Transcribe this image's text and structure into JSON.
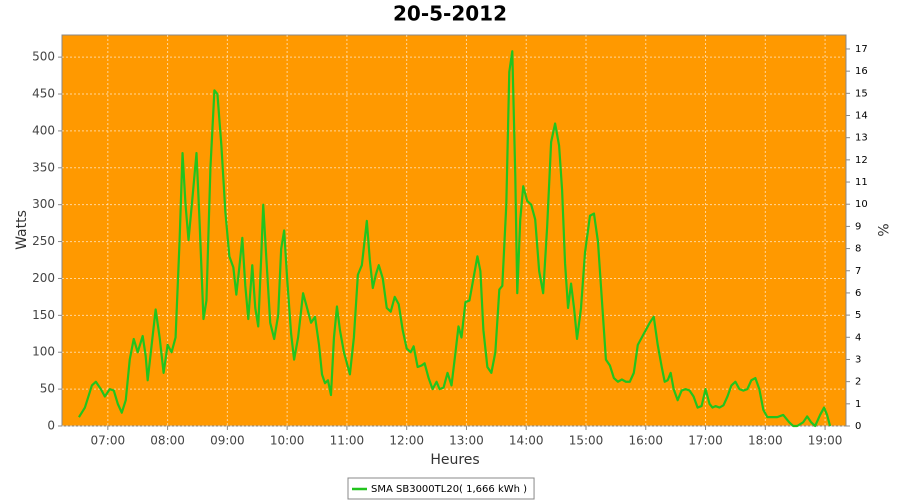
{
  "chart_data": {
    "type": "line",
    "title": "20-5-2012",
    "x_label": "Heures",
    "y_label": "Watts",
    "y2_label": "%",
    "x": [
      391,
      397,
      404,
      408,
      413,
      417,
      422,
      426,
      430,
      434,
      438,
      442,
      446,
      450,
      455,
      458,
      460,
      464,
      468,
      472,
      476,
      480,
      484,
      488,
      492,
      495,
      498,
      501,
      505,
      509,
      512,
      516,
      519,
      523,
      527,
      530,
      534,
      538,
      542,
      546,
      549,
      552,
      555,
      558,
      561,
      565,
      568,
      571,
      574,
      576,
      579,
      583,
      587,
      591,
      594,
      597,
      600,
      604,
      607,
      611,
      616,
      620,
      624,
      628,
      632,
      635,
      638,
      641,
      644,
      647,
      650,
      653,
      657,
      663,
      667,
      671,
      675,
      680,
      683,
      686,
      689,
      692,
      696,
      700,
      704,
      708,
      712,
      716,
      720,
      724,
      727,
      731,
      735,
      738,
      742,
      746,
      750,
      753,
      757,
      761,
      765,
      769,
      772,
      775,
      779,
      783,
      787,
      791,
      794,
      797,
      801,
      805,
      809,
      813,
      816,
      820,
      823,
      826,
      829,
      831,
      834,
      837,
      841,
      845,
      849,
      853,
      857,
      861,
      865,
      869,
      873,
      876,
      879,
      882,
      885,
      888,
      891,
      895,
      899,
      904,
      908,
      912,
      916,
      920,
      924,
      928,
      932,
      936,
      940,
      944,
      948,
      952,
      956,
      960,
      964,
      968,
      972,
      976,
      979,
      982,
      985,
      988,
      992,
      996,
      1000,
      1004,
      1008,
      1012,
      1016,
      1020,
      1024,
      1027,
      1030,
      1034,
      1038,
      1042,
      1046,
      1050,
      1054,
      1058,
      1062,
      1066,
      1070,
      1074,
      1078,
      1082,
      1086,
      1092,
      1098,
      1104,
      1108,
      1112,
      1118,
      1122,
      1126,
      1130,
      1135,
      1139,
      1142,
      1145
    ],
    "series": [
      {
        "name": "SMA SB3000TL20( 1,666 kWh )",
        "color": "#22c41e",
        "values": [
          12,
          25,
          55,
          60,
          50,
          40,
          50,
          48,
          30,
          18,
          35,
          90,
          118,
          100,
          122,
          95,
          62,
          110,
          158,
          120,
          72,
          110,
          100,
          120,
          250,
          370,
          300,
          252,
          310,
          370,
          280,
          145,
          170,
          350,
          455,
          450,
          380,
          290,
          230,
          215,
          178,
          215,
          255,
          190,
          145,
          218,
          160,
          135,
          230,
          300,
          230,
          140,
          118,
          150,
          240,
          265,
          200,
          125,
          90,
          120,
          180,
          160,
          140,
          148,
          110,
          70,
          58,
          62,
          42,
          120,
          162,
          130,
          100,
          70,
          120,
          205,
          218,
          278,
          225,
          187,
          205,
          218,
          200,
          160,
          155,
          175,
          165,
          130,
          105,
          100,
          108,
          80,
          82,
          85,
          65,
          50,
          60,
          50,
          52,
          72,
          55,
          100,
          135,
          120,
          168,
          170,
          200,
          230,
          210,
          130,
          80,
          72,
          100,
          185,
          190,
          300,
          480,
          508,
          340,
          180,
          280,
          325,
          305,
          300,
          280,
          210,
          180,
          270,
          385,
          410,
          380,
          320,
          220,
          160,
          193,
          160,
          118,
          160,
          235,
          285,
          288,
          250,
          170,
          90,
          82,
          65,
          60,
          63,
          60,
          60,
          72,
          110,
          120,
          130,
          140,
          148,
          110,
          80,
          60,
          62,
          72,
          50,
          35,
          48,
          50,
          48,
          40,
          25,
          27,
          50,
          30,
          25,
          27,
          25,
          28,
          40,
          55,
          60,
          50,
          48,
          50,
          62,
          65,
          50,
          22,
          12,
          12,
          12,
          15,
          5,
          0,
          0,
          5,
          13,
          5,
          0,
          15,
          25,
          15,
          0
        ]
      }
    ],
    "xlim": [
      374,
      1161
    ],
    "xticks": [
      {
        "value": 420,
        "label": "07:00"
      },
      {
        "value": 480,
        "label": "08:00"
      },
      {
        "value": 540,
        "label": "09:00"
      },
      {
        "value": 600,
        "label": "10:00"
      },
      {
        "value": 660,
        "label": "11:00"
      },
      {
        "value": 720,
        "label": "12:00"
      },
      {
        "value": 780,
        "label": "13:00"
      },
      {
        "value": 840,
        "label": "14:00"
      },
      {
        "value": 900,
        "label": "15:00"
      },
      {
        "value": 960,
        "label": "16:00"
      },
      {
        "value": 1020,
        "label": "17:00"
      },
      {
        "value": 1080,
        "label": "18:00"
      },
      {
        "value": 1140,
        "label": "19:00"
      }
    ],
    "ylim": [
      0,
      530
    ],
    "yticks": [
      0,
      50,
      100,
      150,
      200,
      250,
      300,
      350,
      400,
      450,
      500
    ],
    "y2lim": [
      0,
      17.63
    ],
    "y2ticks": [
      0,
      1,
      2,
      3,
      4,
      5,
      6,
      7,
      8,
      9,
      10,
      11,
      12,
      13,
      14,
      15,
      16,
      17
    ],
    "grid": true,
    "background": "#ff9900",
    "legend": "bottom"
  }
}
